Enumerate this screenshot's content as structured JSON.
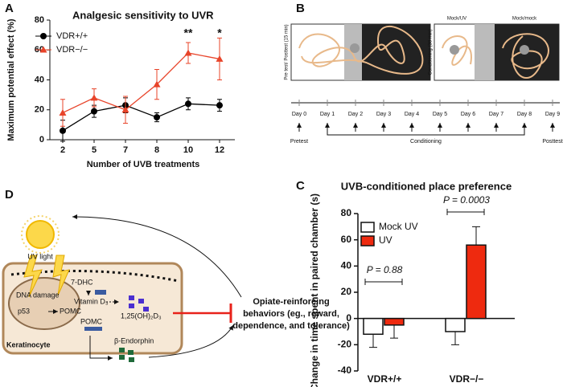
{
  "panel_labels": [
    "A",
    "B",
    "C",
    "D"
  ],
  "chart_data": [
    {
      "type": "line",
      "title": "Analgesic sensitivity to UVR",
      "x_label": "Number of UVB treatments",
      "y_label": "Maximum potential effect (%)",
      "categories": [
        "2",
        "5",
        "7",
        "8",
        "10",
        "12"
      ],
      "series": [
        {
          "name": "VDR+/+",
          "color": "#000000",
          "marker": "circle",
          "values": [
            6,
            19,
            23,
            15,
            24,
            23
          ],
          "errors": [
            7,
            4,
            5,
            3,
            4,
            4
          ]
        },
        {
          "name": "VDR−/−",
          "color": "#e8442a",
          "marker": "triangle",
          "values": [
            18,
            28,
            20,
            37,
            58,
            54
          ],
          "errors": [
            9,
            6,
            9,
            10,
            7,
            14
          ]
        }
      ],
      "annotations": [
        "**",
        "*"
      ],
      "ylim": [
        0,
        80
      ],
      "yticks": [
        0,
        20,
        40,
        60,
        80
      ]
    },
    {
      "type": "bar",
      "title": "UVB-conditioned place preference",
      "y_label": "Change in time spent in paired chamber (s)",
      "categories": [
        "VDR+/+",
        "VDR−/−"
      ],
      "series": [
        {
          "name": "Mock UV",
          "color": "#ffffff",
          "values": [
            -12,
            -10
          ],
          "errors": [
            10,
            10
          ]
        },
        {
          "name": "UV",
          "color": "#ee2a0f",
          "values": [
            -5,
            56
          ],
          "errors": [
            10,
            14
          ]
        }
      ],
      "annotations": [
        "P = 0.88",
        "P = 0.0003"
      ],
      "ylim": [
        -40,
        80
      ],
      "yticks": [
        -40,
        -20,
        0,
        20,
        40,
        60,
        80
      ]
    }
  ],
  "timeline": {
    "box_labels": [
      "Pre test/ Posttest (15 min)",
      "Conditioning (30 min)"
    ],
    "chamber_titles": [
      "Mock/UV",
      "Mock/mock"
    ],
    "days": [
      "Day 0",
      "Day 1",
      "Day 2",
      "Day 3",
      "Day 4",
      "Day 5",
      "Day 6",
      "Day 7",
      "Day 8",
      "Day 9"
    ],
    "phases": [
      "Pretest",
      "Conditioning",
      "Posttest"
    ]
  },
  "diagram": {
    "uv": "UV light",
    "precursor": "7-DHC",
    "damage": "DNA damage",
    "p53": "p53",
    "pomc_gene": "POMC",
    "vitamin": "Vitamin D₃",
    "hormone": "1,25(OH)₂D₃",
    "pomc_protein": "POMC",
    "endorphin": "β-Endorphin",
    "cell": "Keratinocyte",
    "outcome": [
      "Opiate-reinforcing",
      "behaviors (eg., reward,",
      "dependence, and tolerance)"
    ]
  }
}
